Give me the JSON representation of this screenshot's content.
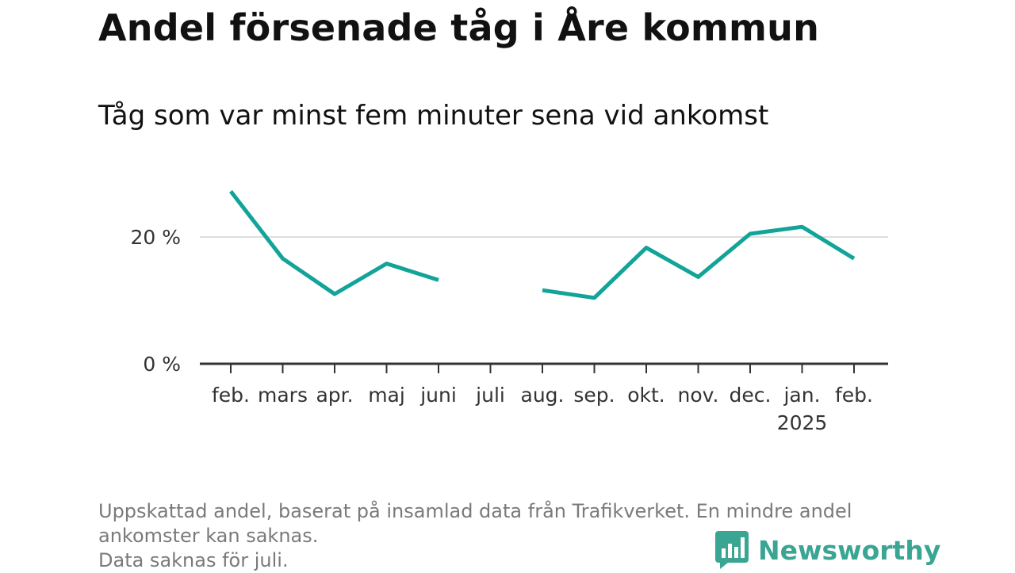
{
  "title": "Andel försenade tåg i Åre kommun",
  "subtitle": "Tåg som var minst fem minuter sena vid ankomst",
  "chart_data": {
    "type": "line",
    "categories": [
      "feb.",
      "mars",
      "apr.",
      "maj",
      "juni",
      "juli",
      "aug.",
      "sep.",
      "okt.",
      "nov.",
      "dec.",
      "jan.",
      "feb."
    ],
    "category_sublabels": [
      "",
      "",
      "",
      "",
      "",
      "",
      "",
      "",
      "",
      "",
      "",
      "2025",
      ""
    ],
    "series": [
      {
        "values": [
          27.2,
          16.6,
          11.0,
          15.8,
          13.2,
          null,
          11.6,
          10.4,
          18.3,
          13.7,
          20.5,
          21.6,
          16.6
        ]
      }
    ],
    "ylim": [
      0,
      30
    ],
    "yticks": [
      0,
      20
    ],
    "ytick_labels": [
      "0 %",
      "20 %"
    ],
    "gridlines": [
      20
    ],
    "color": "#12a399"
  },
  "notes": [
    "Uppskattad andel, baserat på insamlad data från Trafikverket. En mindre andel",
    "ankomster kan saknas.",
    "Data saknas för juli."
  ],
  "brand": {
    "name": "Newsworthy",
    "color": "#3aa592",
    "icon": "newsworthy-logo-icon"
  }
}
